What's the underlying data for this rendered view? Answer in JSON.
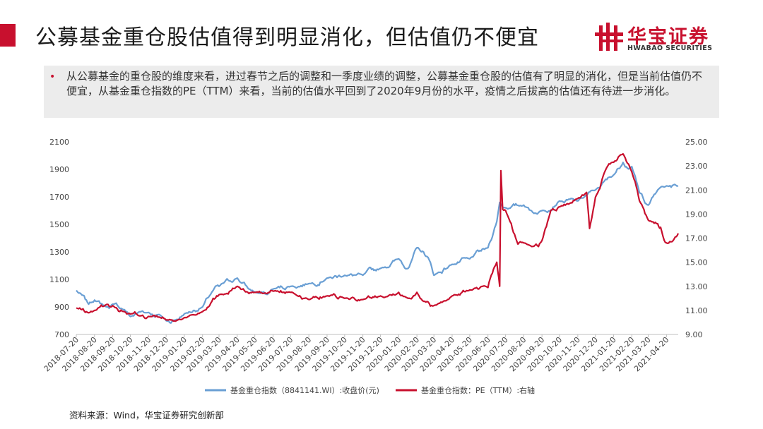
{
  "slide": {
    "title": "公募基金重仓股估值得到明显消化，但估值仍不便宜",
    "logo_cn": "华宝证券",
    "logo_en": "HWABAO SECURITIES",
    "bullet": "从公募基金的重仓股的维度来看，进过春节之后的调整和一季度业绩的调整，公募基金重仓股的估值有了明显的消化，但是当前估值仍不便宜，从基金重仓指数的PE（TTM）来看，当前的估值水平回到了2020年9月份的水平，疫情之后拔高的估值还有待进一步消化。",
    "source": "资料来源：Wind，华宝证券研究创新部",
    "accent_color": "#c8102e"
  },
  "chart_data": {
    "type": "line",
    "x": [
      "2018-07-20",
      "2018-08-20",
      "2018-09-20",
      "2018-10-20",
      "2018-11-20",
      "2018-12-20",
      "2019-01-20",
      "2019-02-20",
      "2019-03-20",
      "2019-04-20",
      "2019-05-20",
      "2019-06-20",
      "2019-07-20",
      "2019-08-20",
      "2019-09-20",
      "2019-10-20",
      "2019-11-20",
      "2019-12-20",
      "2020-01-20",
      "2020-02-20",
      "2020-03-20",
      "2020-04-20",
      "2020-05-20",
      "2020-06-20",
      "2020-07-20",
      "2020-08-20",
      "2020-09-20",
      "2020-10-20",
      "2020-11-20",
      "2020-12-20",
      "2021-01-20",
      "2021-02-20",
      "2021-03-20",
      "2021-04-20"
    ],
    "ylim_left": [
      700,
      2100
    ],
    "yticks_left": [
      "700",
      "900",
      "1100",
      "1300",
      "1500",
      "1700",
      "1900",
      "2100"
    ],
    "ylim_right": [
      9,
      25
    ],
    "yticks_right": [
      "9.00",
      "11.00",
      "13.00",
      "15.00",
      "17.00",
      "19.00",
      "21.00",
      "23.00",
      "25.00"
    ],
    "series": [
      {
        "name": "基金重仓指数（8841141.WI）:收盘价(元)",
        "axis": "left",
        "color": "#6a9fd4",
        "anchors": [
          [
            "2018-07-20",
            1020
          ],
          [
            "2018-08-10",
            920
          ],
          [
            "2018-08-20",
            950
          ],
          [
            "2018-09-10",
            900
          ],
          [
            "2018-09-20",
            920
          ],
          [
            "2018-10-10",
            880
          ],
          [
            "2018-10-20",
            830
          ],
          [
            "2018-11-10",
            870
          ],
          [
            "2018-11-20",
            860
          ],
          [
            "2018-12-10",
            840
          ],
          [
            "2018-12-20",
            800
          ],
          [
            "2019-01-05",
            805
          ],
          [
            "2019-01-20",
            850
          ],
          [
            "2019-02-20",
            900
          ],
          [
            "2019-03-10",
            1020
          ],
          [
            "2019-03-20",
            1050
          ],
          [
            "2019-04-20",
            1110
          ],
          [
            "2019-05-10",
            1030
          ],
          [
            "2019-05-20",
            1010
          ],
          [
            "2019-06-10",
            990
          ],
          [
            "2019-06-20",
            1030
          ],
          [
            "2019-07-20",
            1050
          ],
          [
            "2019-08-20",
            1070
          ],
          [
            "2019-09-20",
            1110
          ],
          [
            "2019-10-20",
            1130
          ],
          [
            "2019-11-20",
            1130
          ],
          [
            "2019-12-20",
            1180
          ],
          [
            "2020-01-20",
            1250
          ],
          [
            "2020-02-05",
            1180
          ],
          [
            "2020-02-20",
            1330
          ],
          [
            "2020-03-10",
            1260
          ],
          [
            "2020-03-20",
            1130
          ],
          [
            "2020-04-20",
            1210
          ],
          [
            "2020-05-20",
            1250
          ],
          [
            "2020-06-20",
            1330
          ],
          [
            "2020-07-05",
            1520
          ],
          [
            "2020-07-10",
            1660
          ],
          [
            "2020-07-20",
            1620
          ],
          [
            "2020-08-20",
            1640
          ],
          [
            "2020-09-10",
            1580
          ],
          [
            "2020-09-20",
            1600
          ],
          [
            "2020-10-20",
            1670
          ],
          [
            "2020-11-20",
            1670
          ],
          [
            "2020-12-20",
            1750
          ],
          [
            "2021-01-20",
            1860
          ],
          [
            "2021-02-05",
            1950
          ],
          [
            "2021-02-20",
            1920
          ],
          [
            "2021-03-05",
            1730
          ],
          [
            "2021-03-20",
            1640
          ],
          [
            "2021-04-05",
            1750
          ],
          [
            "2021-04-20",
            1780
          ],
          [
            "2021-05-10",
            1780
          ]
        ]
      },
      {
        "name": "基金重仓指数：PE（TTM）:右轴",
        "axis": "right",
        "color": "#c8102e",
        "anchors": [
          [
            "2018-07-20",
            11.2
          ],
          [
            "2018-08-10",
            10.8
          ],
          [
            "2018-08-20",
            11.0
          ],
          [
            "2018-09-10",
            11.5
          ],
          [
            "2018-09-20",
            11.4
          ],
          [
            "2018-10-10",
            10.9
          ],
          [
            "2018-10-20",
            10.7
          ],
          [
            "2018-11-10",
            10.6
          ],
          [
            "2018-11-20",
            10.5
          ],
          [
            "2018-12-10",
            10.4
          ],
          [
            "2018-12-20",
            10.2
          ],
          [
            "2019-01-05",
            10.1
          ],
          [
            "2019-01-20",
            10.4
          ],
          [
            "2019-02-20",
            10.9
          ],
          [
            "2019-03-10",
            12.0
          ],
          [
            "2019-03-20",
            12.3
          ],
          [
            "2019-04-20",
            13.0
          ],
          [
            "2019-05-10",
            12.4
          ],
          [
            "2019-05-20",
            12.5
          ],
          [
            "2019-06-10",
            12.4
          ],
          [
            "2019-06-20",
            12.6
          ],
          [
            "2019-07-20",
            12.5
          ],
          [
            "2019-08-20",
            11.9
          ],
          [
            "2019-09-20",
            12.2
          ],
          [
            "2019-10-20",
            12.0
          ],
          [
            "2019-11-20",
            11.9
          ],
          [
            "2019-12-20",
            12.2
          ],
          [
            "2020-01-20",
            12.5
          ],
          [
            "2020-02-05",
            12.0
          ],
          [
            "2020-02-20",
            12.5
          ],
          [
            "2020-03-10",
            11.7
          ],
          [
            "2020-03-20",
            11.4
          ],
          [
            "2020-04-20",
            12.2
          ],
          [
            "2020-05-20",
            12.7
          ],
          [
            "2020-06-20",
            12.9
          ],
          [
            "2020-07-05",
            15.0
          ],
          [
            "2020-07-10",
            13.0
          ],
          [
            "2020-07-12",
            22.6
          ],
          [
            "2020-07-15",
            19.4
          ],
          [
            "2020-07-20",
            19.3
          ],
          [
            "2020-08-10",
            16.5
          ],
          [
            "2020-08-20",
            16.6
          ],
          [
            "2020-09-10",
            16.5
          ],
          [
            "2020-09-20",
            16.8
          ],
          [
            "2020-10-05",
            19.3
          ],
          [
            "2020-10-20",
            19.6
          ],
          [
            "2020-11-20",
            20.3
          ],
          [
            "2020-12-05",
            20.8
          ],
          [
            "2020-12-10",
            17.8
          ],
          [
            "2020-12-20",
            20.4
          ],
          [
            "2021-01-10",
            23.0
          ],
          [
            "2021-01-20",
            23.3
          ],
          [
            "2021-02-05",
            24.0
          ],
          [
            "2021-02-20",
            22.5
          ],
          [
            "2021-03-05",
            20.1
          ],
          [
            "2021-03-20",
            18.5
          ],
          [
            "2021-04-05",
            18.2
          ],
          [
            "2021-04-10",
            17.9
          ],
          [
            "2021-04-20",
            16.6
          ],
          [
            "2021-05-05",
            17.1
          ],
          [
            "2021-05-10",
            17.4
          ]
        ]
      }
    ],
    "legend_position": "bottom",
    "grid": false
  }
}
